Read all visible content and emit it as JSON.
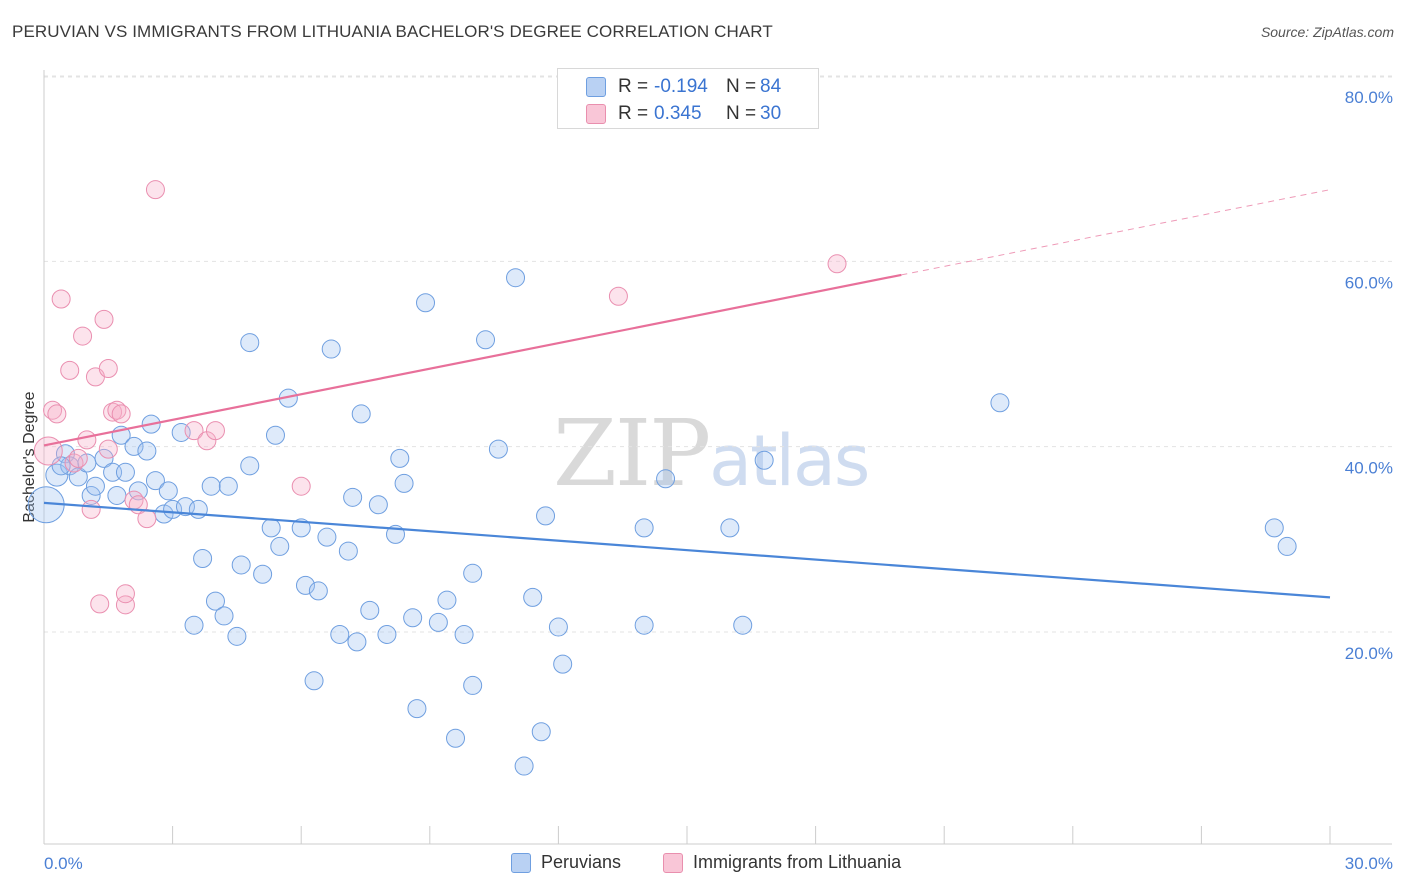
{
  "title": "PERUVIAN VS IMMIGRANTS FROM LITHUANIA BACHELOR'S DEGREE CORRELATION CHART",
  "source": "Source: ZipAtlas.com",
  "watermark": {
    "zip": "ZIP",
    "atlas": "atlas"
  },
  "colors": {
    "blue": "#4a86d8",
    "blue_fill": "rgba(160,195,240,0.35)",
    "pink": "#e8709a",
    "pink_fill": "rgba(245,170,195,0.35)",
    "grid": "#dddddd",
    "axis_text": "#4a7fd4"
  },
  "legend": {
    "rows": [
      {
        "r_label": "R =",
        "r_value": "-0.194",
        "n_label": "N =",
        "n_value": "84"
      },
      {
        "r_label": "R =",
        "r_value": "0.345",
        "n_label": "N =",
        "n_value": "30"
      }
    ]
  },
  "bottom_legend": [
    "Peruvians",
    "Immigrants from Lithuania"
  ],
  "chart_data": {
    "type": "scatter",
    "title": "PERUVIAN VS IMMIGRANTS FROM LITHUANIA BACHELOR'S DEGREE CORRELATION CHART",
    "ylabel": "Bachelor's Degree",
    "xlabel": "",
    "xlim": [
      0,
      30
    ],
    "ylim": [
      0,
      82
    ],
    "x_tick_labels": [
      "0.0%",
      "30.0%"
    ],
    "y_tick_labels": [
      "80.0%",
      "60.0%",
      "40.0%",
      "20.0%"
    ],
    "y_ticks": [
      80,
      60,
      40,
      20
    ],
    "grid": true,
    "legend_position": "top-center",
    "series": [
      {
        "name": "Peruvians",
        "color": "#4a86d8",
        "trend": {
          "x": [
            0,
            30
          ],
          "y": [
            36.2,
            26.0
          ]
        },
        "points": [
          [
            0.05,
            36.0,
            18
          ],
          [
            0.3,
            39.2,
            11
          ],
          [
            0.5,
            41.5,
            9
          ],
          [
            0.6,
            40.2,
            9
          ],
          [
            0.8,
            39.0,
            9
          ],
          [
            1.0,
            40.5,
            9
          ],
          [
            1.1,
            37.0,
            9
          ],
          [
            1.2,
            38.0,
            9
          ],
          [
            1.4,
            41.0,
            9
          ],
          [
            1.6,
            39.5,
            9
          ],
          [
            1.7,
            37.0,
            9
          ],
          [
            1.8,
            43.5,
            9
          ],
          [
            1.9,
            39.5,
            9
          ],
          [
            2.1,
            42.3,
            9
          ],
          [
            2.2,
            37.5,
            9
          ],
          [
            2.4,
            41.8,
            9
          ],
          [
            2.5,
            44.7,
            9
          ],
          [
            2.6,
            38.6,
            9
          ],
          [
            2.8,
            35.0,
            9
          ],
          [
            2.9,
            37.5,
            9
          ],
          [
            3.0,
            35.5,
            9
          ],
          [
            3.2,
            43.8,
            9
          ],
          [
            3.3,
            35.8,
            9
          ],
          [
            3.6,
            35.5,
            9
          ],
          [
            3.9,
            38.0,
            9
          ],
          [
            4.3,
            38.0,
            9
          ],
          [
            3.5,
            23.0,
            9
          ],
          [
            3.7,
            30.2,
            9
          ],
          [
            4.0,
            25.6,
            9
          ],
          [
            4.2,
            24.0,
            9
          ],
          [
            4.5,
            21.8,
            9
          ],
          [
            4.6,
            29.5,
            9
          ],
          [
            4.8,
            40.2,
            9
          ],
          [
            4.8,
            53.5,
            9
          ],
          [
            5.1,
            28.5,
            9
          ],
          [
            5.3,
            33.5,
            9
          ],
          [
            5.4,
            43.5,
            9
          ],
          [
            5.5,
            31.5,
            9
          ],
          [
            5.7,
            47.5,
            9
          ],
          [
            6.0,
            33.5,
            9
          ],
          [
            6.1,
            27.3,
            9
          ],
          [
            6.4,
            26.7,
            9
          ],
          [
            6.3,
            17.0,
            9
          ],
          [
            6.6,
            32.5,
            9
          ],
          [
            6.7,
            52.8,
            9
          ],
          [
            6.9,
            22.0,
            9
          ],
          [
            7.1,
            31.0,
            9
          ],
          [
            7.2,
            36.8,
            9
          ],
          [
            7.3,
            21.2,
            9
          ],
          [
            7.4,
            45.8,
            9
          ],
          [
            7.6,
            24.6,
            9
          ],
          [
            7.8,
            36.0,
            9
          ],
          [
            8.0,
            22.0,
            9
          ],
          [
            8.2,
            32.8,
            9
          ],
          [
            8.3,
            41.0,
            9
          ],
          [
            8.4,
            38.3,
            9
          ],
          [
            8.6,
            23.8,
            9
          ],
          [
            8.7,
            14.0,
            9
          ],
          [
            8.9,
            57.8,
            9
          ],
          [
            9.2,
            23.3,
            9
          ],
          [
            9.4,
            25.7,
            9
          ],
          [
            9.6,
            10.8,
            9
          ],
          [
            9.8,
            22.0,
            9
          ],
          [
            10.0,
            28.6,
            9
          ],
          [
            10.0,
            16.5,
            9
          ],
          [
            10.3,
            53.8,
            9
          ],
          [
            10.6,
            42.0,
            9
          ],
          [
            11.0,
            60.5,
            9
          ],
          [
            11.2,
            7.8,
            9
          ],
          [
            11.4,
            26.0,
            9
          ],
          [
            11.6,
            11.5,
            9
          ],
          [
            11.7,
            34.8,
            9
          ],
          [
            12.0,
            22.8,
            9
          ],
          [
            12.1,
            18.8,
            9
          ],
          [
            14.0,
            33.5,
            9
          ],
          [
            14.0,
            23.0,
            9
          ],
          [
            14.5,
            38.8,
            9
          ],
          [
            16.0,
            33.5,
            9
          ],
          [
            16.3,
            23.0,
            9
          ],
          [
            16.8,
            40.8,
            9
          ],
          [
            22.3,
            47.0,
            9
          ],
          [
            28.7,
            33.5,
            9
          ],
          [
            29.0,
            31.5,
            9
          ],
          [
            0.4,
            40.2,
            9
          ]
        ]
      },
      {
        "name": "Immigrants from Lithuania",
        "color": "#e8709a",
        "trend": {
          "x": [
            0,
            20
          ],
          "y": [
            42.4,
            60.8
          ],
          "dashed_to": {
            "x": 30,
            "y": 70.0
          }
        },
        "points": [
          [
            0.1,
            41.8,
            14
          ],
          [
            0.2,
            46.2,
            9
          ],
          [
            0.3,
            45.8,
            9
          ],
          [
            0.4,
            58.2,
            9
          ],
          [
            0.6,
            50.5,
            9
          ],
          [
            0.7,
            40.5,
            9
          ],
          [
            0.9,
            54.2,
            9
          ],
          [
            1.0,
            43.0,
            9
          ],
          [
            1.1,
            35.5,
            9
          ],
          [
            1.2,
            49.8,
            9
          ],
          [
            1.3,
            25.3,
            9
          ],
          [
            1.4,
            56.0,
            9
          ],
          [
            1.5,
            42.0,
            9
          ],
          [
            1.5,
            50.7,
            9
          ],
          [
            1.6,
            46.0,
            9
          ],
          [
            1.7,
            46.2,
            9
          ],
          [
            1.8,
            45.8,
            9
          ],
          [
            1.9,
            25.2,
            9
          ],
          [
            1.9,
            26.4,
            9
          ],
          [
            2.1,
            36.5,
            9
          ],
          [
            2.2,
            36.0,
            9
          ],
          [
            2.4,
            34.5,
            9
          ],
          [
            2.6,
            70.0,
            9
          ],
          [
            3.5,
            44.0,
            9
          ],
          [
            3.8,
            42.9,
            9
          ],
          [
            4.0,
            44.0,
            9
          ],
          [
            6.0,
            38.0,
            9
          ],
          [
            13.4,
            58.5,
            9
          ],
          [
            18.5,
            62.0,
            9
          ],
          [
            0.8,
            41.0,
            9
          ]
        ]
      }
    ]
  }
}
